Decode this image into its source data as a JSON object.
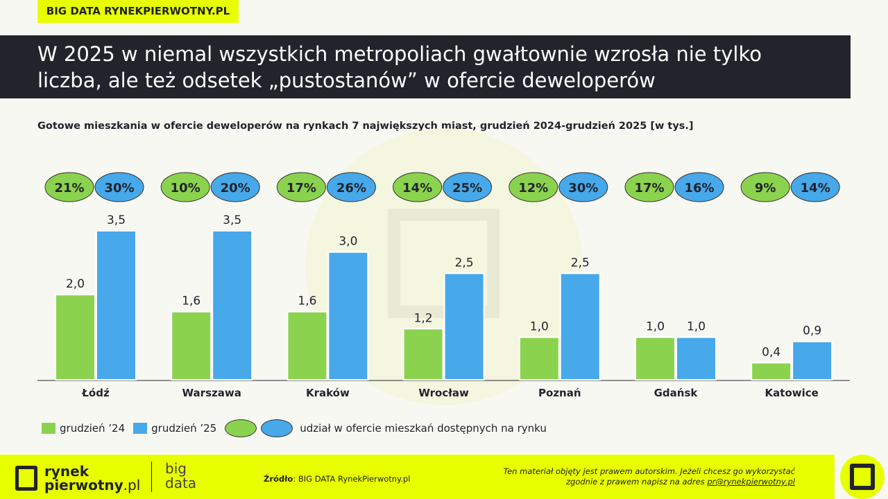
{
  "tag": "BIG DATA RYNEKPIERWOTNY.PL",
  "title_line1": "W 2025 w niemal wszystkich metropoliach gwałtownie wzrosła nie tylko",
  "title_line2": "liczba, ale też odsetek „pustostanów” w ofercie deweloperów",
  "colors": {
    "green": "#8bd34f",
    "blue": "#47a8ea",
    "accent": "#e8ff00",
    "dark": "#22232b"
  },
  "chart_data": {
    "type": "bar",
    "title": "Gotowe mieszkania w ofercie deweloperów na rynkach 7 największych miast, grudzień 2024-grudzień 2025 [w tys.]",
    "categories": [
      "Łódź",
      "Warszawa",
      "Kraków",
      "Wrocław",
      "Poznań",
      "Gdańsk",
      "Katowice"
    ],
    "series": [
      {
        "name": "grudzień ’24",
        "values": [
          2.0,
          1.6,
          1.6,
          1.2,
          1.0,
          1.0,
          0.4
        ],
        "labels": [
          "2,0",
          "1,6",
          "1,6",
          "1,2",
          "1,0",
          "1,0",
          "0,4"
        ],
        "shares": [
          "21%",
          "10%",
          "17%",
          "14%",
          "12%",
          "17%",
          "9%"
        ]
      },
      {
        "name": "grudzień ’25",
        "values": [
          3.5,
          3.5,
          3.0,
          2.5,
          2.5,
          1.0,
          0.9
        ],
        "labels": [
          "3,5",
          "3,5",
          "3,0",
          "2,5",
          "2,5",
          "1,0",
          "0,9"
        ],
        "shares": [
          "30%",
          "20%",
          "26%",
          "25%",
          "30%",
          "16%",
          "14%"
        ]
      }
    ],
    "share_legend": "udział w ofercie mieszkań dostępnych na rynku",
    "ylim": [
      0,
      3.5
    ],
    "grid": false,
    "legend": "bottom-left"
  },
  "footer": {
    "logo_line1": "rynek",
    "logo_line2": "pierwotny",
    "logo_suffix": ".pl",
    "bigdata_line1": "big",
    "bigdata_line2": "data",
    "source_label": "Źródło",
    "source_value": ": BIG DATA RynekPierwotny.pl",
    "copyright_line1": "Ten materiał objęty jest prawem autorskim. Jeżeli chcesz go wykorzystać",
    "copyright_line2": "zgodnie z prawem napisz na adres ",
    "email": "pr@rynekpierwotny.pl"
  }
}
